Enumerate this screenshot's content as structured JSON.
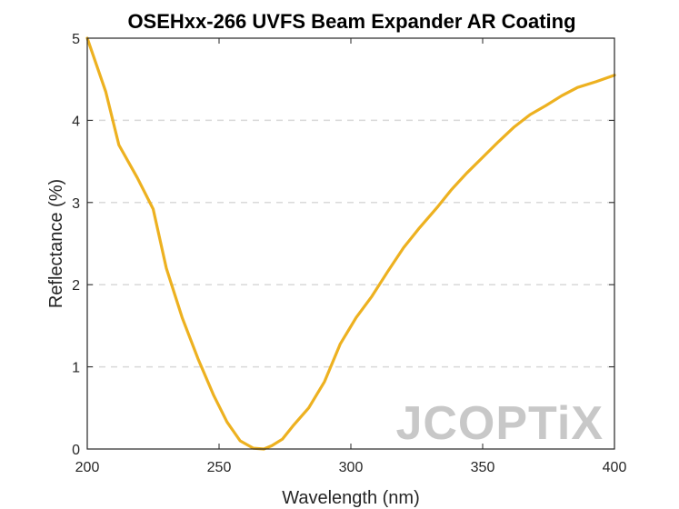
{
  "chart_data": {
    "type": "line",
    "title": "OSEHxx-266 UVFS Beam Expander AR Coating",
    "xlabel": "Wavelength (nm)",
    "ylabel": "Reflectance (%)",
    "xlim": [
      200,
      400
    ],
    "ylim": [
      0,
      5
    ],
    "xticks": [
      200,
      250,
      300,
      350,
      400
    ],
    "yticks": [
      0,
      1,
      2,
      3,
      4,
      5
    ],
    "grid": "horizontal dashed",
    "series": [
      {
        "color": "#EDB120",
        "x": [
          200,
          207,
          212,
          219,
          225,
          230,
          236,
          242,
          248,
          253,
          258,
          263,
          267,
          270,
          274,
          278,
          284,
          290,
          296,
          302,
          308,
          314,
          320,
          326,
          333,
          338,
          344,
          350,
          356,
          362,
          368,
          374,
          380,
          386,
          393,
          400
        ],
        "y": [
          5.0,
          4.35,
          3.7,
          3.3,
          2.92,
          2.2,
          1.6,
          1.1,
          0.65,
          0.33,
          0.1,
          0.01,
          0.0,
          0.04,
          0.12,
          0.28,
          0.5,
          0.82,
          1.28,
          1.6,
          1.86,
          2.16,
          2.45,
          2.69,
          2.95,
          3.15,
          3.36,
          3.55,
          3.74,
          3.92,
          4.07,
          4.18,
          4.3,
          4.4,
          4.47,
          4.55
        ]
      }
    ]
  },
  "watermark": "JCOPTiX"
}
